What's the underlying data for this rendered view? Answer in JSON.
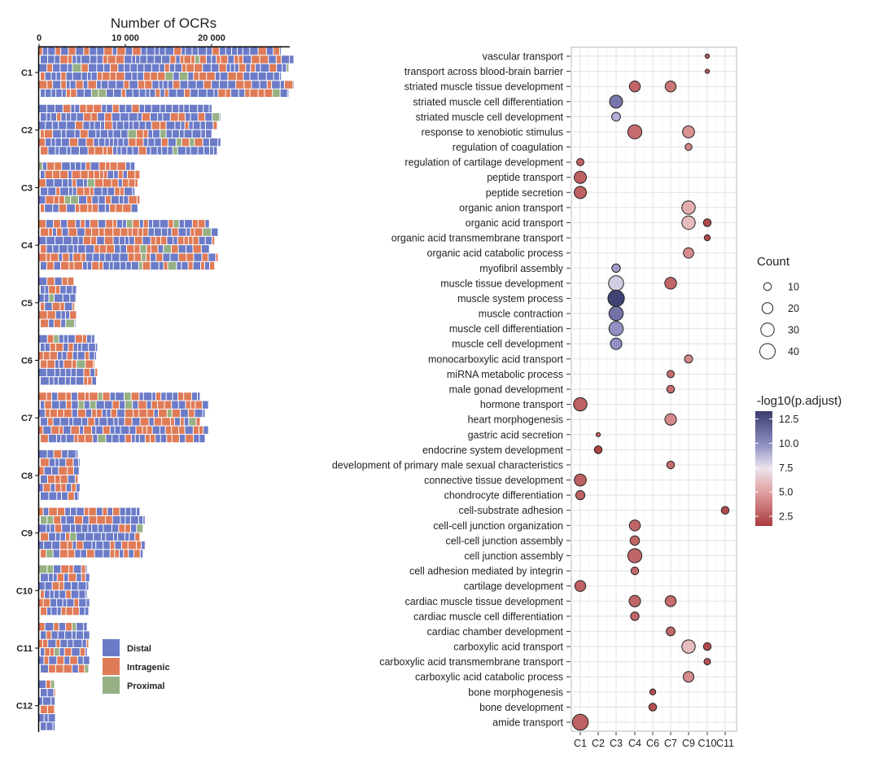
{
  "chart_data": [
    {
      "type": "bar",
      "stacked": true,
      "orientation": "horizontal",
      "title": "Number of OCRs",
      "x_ticks": [
        "0",
        "10 000",
        "20 000"
      ],
      "x_tick_values": [
        0,
        10000,
        20000
      ],
      "xlim": [
        0,
        29000
      ],
      "categories": [
        "C1",
        "C2",
        "C3",
        "C4",
        "C5",
        "C6",
        "C7",
        "C8",
        "C9",
        "C10",
        "C11",
        "C12"
      ],
      "totals": [
        29000,
        20700,
        11500,
        20400,
        4300,
        6700,
        19300,
        4700,
        12100,
        5800,
        5800,
        1900
      ],
      "series": [
        {
          "name": "Distal",
          "color": "#6b7bc8",
          "fractions": [
            0.62,
            0.68,
            0.5,
            0.52,
            0.66,
            0.58,
            0.6,
            0.68,
            0.62,
            0.58,
            0.6,
            0.75
          ]
        },
        {
          "name": "Intragenic",
          "color": "#e07b57",
          "fractions": [
            0.34,
            0.28,
            0.44,
            0.44,
            0.3,
            0.36,
            0.35,
            0.28,
            0.32,
            0.36,
            0.36,
            0.22
          ]
        },
        {
          "name": "Proximal",
          "color": "#96b184",
          "fractions": [
            0.04,
            0.04,
            0.06,
            0.04,
            0.04,
            0.06,
            0.05,
            0.04,
            0.06,
            0.06,
            0.04,
            0.03
          ]
        }
      ],
      "legend": {
        "position": "bottom-right",
        "entries": [
          "Distal",
          "Intragenic",
          "Proximal"
        ]
      }
    },
    {
      "type": "scatter",
      "subtype": "dotplot",
      "x_categories": [
        "C1",
        "C2",
        "C3",
        "C4",
        "C6",
        "C7",
        "C9",
        "C10",
        "C11"
      ],
      "y_categories": [
        "vascular transport",
        "transport across blood-brain barrier",
        "striated muscle tissue development",
        "striated muscle cell differentiation",
        "striated muscle cell development",
        "response to xenobiotic stimulus",
        "regulation of coagulation",
        "regulation of cartilage development",
        "peptide transport",
        "peptide secretion",
        "organic anion transport",
        "organic acid transport",
        "organic acid transmembrane transport",
        "organic acid catabolic process",
        "myofibril assembly",
        "muscle tissue development",
        "muscle system process",
        "muscle contraction",
        "muscle cell differentiation",
        "muscle cell development",
        "monocarboxylic acid transport",
        "miRNA metabolic process",
        "male gonad development",
        "hormone transport",
        "heart morphogenesis",
        "gastric acid secretion",
        "endocrine system development",
        "development of primary male sexual characteristics",
        "connective tissue development",
        "chondrocyte differentiation",
        "cell-substrate adhesion",
        "cell-cell junction organization",
        "cell-cell junction assembly",
        "cell junction assembly",
        "cell adhesion mediated by integrin",
        "cartilage development",
        "cardiac muscle tissue development",
        "cardiac muscle cell differentiation",
        "cardiac chamber development",
        "carboxylic acid transport",
        "carboxylic acid transmembrane transport",
        "carboxylic acid catabolic process",
        "bone morphogenesis",
        "bone development",
        "amide transport"
      ],
      "points": [
        {
          "term": 0,
          "cluster": "C10",
          "count": 3,
          "p": 2.5
        },
        {
          "term": 1,
          "cluster": "C10",
          "count": 3,
          "p": 2.5
        },
        {
          "term": 2,
          "cluster": "C4",
          "count": 20,
          "p": 3.0
        },
        {
          "term": 2,
          "cluster": "C7",
          "count": 20,
          "p": 3.5
        },
        {
          "term": 3,
          "cluster": "C3",
          "count": 28,
          "p": 10.8
        },
        {
          "term": 4,
          "cluster": "C3",
          "count": 13,
          "p": 9.0
        },
        {
          "term": 5,
          "cluster": "C4",
          "count": 33,
          "p": 3.2
        },
        {
          "term": 5,
          "cluster": "C9",
          "count": 24,
          "p": 4.5
        },
        {
          "term": 6,
          "cluster": "C9",
          "count": 8,
          "p": 4.0
        },
        {
          "term": 7,
          "cluster": "C1",
          "count": 9,
          "p": 2.8
        },
        {
          "term": 8,
          "cluster": "C1",
          "count": 25,
          "p": 2.8
        },
        {
          "term": 9,
          "cluster": "C1",
          "count": 25,
          "p": 2.8
        },
        {
          "term": 10,
          "cluster": "C9",
          "count": 30,
          "p": 5.5
        },
        {
          "term": 11,
          "cluster": "C9",
          "count": 30,
          "p": 6.0
        },
        {
          "term": 11,
          "cluster": "C10",
          "count": 10,
          "p": 2.0
        },
        {
          "term": 12,
          "cluster": "C10",
          "count": 6,
          "p": 2.0
        },
        {
          "term": 13,
          "cluster": "C9",
          "count": 18,
          "p": 4.3
        },
        {
          "term": 14,
          "cluster": "C3",
          "count": 12,
          "p": 9.5
        },
        {
          "term": 15,
          "cluster": "C3",
          "count": 38,
          "p": 8.2
        },
        {
          "term": 15,
          "cluster": "C7",
          "count": 23,
          "p": 3.0
        },
        {
          "term": 16,
          "cluster": "C3",
          "count": 45,
          "p": 13.0
        },
        {
          "term": 17,
          "cluster": "C3",
          "count": 34,
          "p": 11.0
        },
        {
          "term": 18,
          "cluster": "C3",
          "count": 34,
          "p": 9.8
        },
        {
          "term": 19,
          "cluster": "C3",
          "count": 22,
          "p": 9.8
        },
        {
          "term": 20,
          "cluster": "C9",
          "count": 11,
          "p": 4.2
        },
        {
          "term": 21,
          "cluster": "C7",
          "count": 9,
          "p": 3.2
        },
        {
          "term": 22,
          "cluster": "C7",
          "count": 10,
          "p": 3.2
        },
        {
          "term": 23,
          "cluster": "C1",
          "count": 30,
          "p": 2.8
        },
        {
          "term": 24,
          "cluster": "C7",
          "count": 22,
          "p": 4.2
        },
        {
          "term": 25,
          "cluster": "C2",
          "count": 3,
          "p": 2.8
        },
        {
          "term": 26,
          "cluster": "C2",
          "count": 10,
          "p": 1.8
        },
        {
          "term": 27,
          "cluster": "C7",
          "count": 10,
          "p": 3.2
        },
        {
          "term": 28,
          "cluster": "C1",
          "count": 24,
          "p": 2.8
        },
        {
          "term": 29,
          "cluster": "C1",
          "count": 14,
          "p": 2.8
        },
        {
          "term": 30,
          "cluster": "C11",
          "count": 10,
          "p": 2.0
        },
        {
          "term": 31,
          "cluster": "C4",
          "count": 20,
          "p": 3.0
        },
        {
          "term": 32,
          "cluster": "C4",
          "count": 15,
          "p": 3.0
        },
        {
          "term": 33,
          "cluster": "C4",
          "count": 33,
          "p": 3.0
        },
        {
          "term": 34,
          "cluster": "C4",
          "count": 10,
          "p": 3.0
        },
        {
          "term": 35,
          "cluster": "C1",
          "count": 20,
          "p": 2.8
        },
        {
          "term": 36,
          "cluster": "C4",
          "count": 22,
          "p": 3.0
        },
        {
          "term": 36,
          "cluster": "C7",
          "count": 20,
          "p": 3.2
        },
        {
          "term": 37,
          "cluster": "C4",
          "count": 12,
          "p": 3.0
        },
        {
          "term": 38,
          "cluster": "C7",
          "count": 13,
          "p": 3.0
        },
        {
          "term": 39,
          "cluster": "C9",
          "count": 30,
          "p": 6.0
        },
        {
          "term": 39,
          "cluster": "C10",
          "count": 10,
          "p": 2.0
        },
        {
          "term": 40,
          "cluster": "C10",
          "count": 7,
          "p": 2.2
        },
        {
          "term": 41,
          "cluster": "C9",
          "count": 19,
          "p": 4.3
        },
        {
          "term": 42,
          "cluster": "C6",
          "count": 6,
          "p": 2.2
        },
        {
          "term": 43,
          "cluster": "C6",
          "count": 10,
          "p": 2.2
        },
        {
          "term": 44,
          "cluster": "C1",
          "count": 42,
          "p": 2.8
        }
      ],
      "size_legend": {
        "title": "Count",
        "values": [
          10,
          20,
          30,
          40
        ],
        "labels": [
          "10",
          "20",
          "30",
          "40"
        ]
      },
      "color_legend": {
        "title": "-log10(p.adjust)",
        "ticks": [
          12.5,
          10.0,
          7.5,
          5.0,
          2.5
        ],
        "labels": [
          "12.5",
          "10.0",
          "7.5",
          "5.0",
          "2.5"
        ],
        "range": [
          1.5,
          13.3
        ],
        "low_color": "#a83b3e",
        "mid_color": "#ebe6ee",
        "high_color": "#3b3c6c"
      }
    }
  ]
}
